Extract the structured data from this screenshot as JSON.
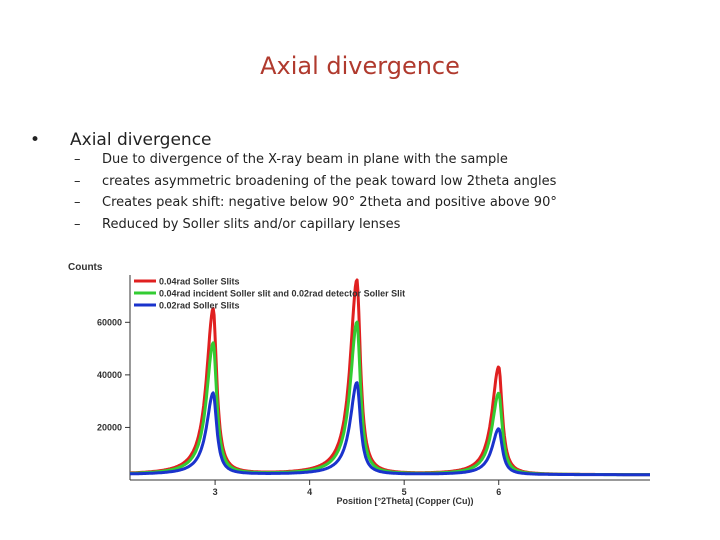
{
  "slide": {
    "title": "Axial divergence",
    "bullet": {
      "marker": "•",
      "text": "Axial divergence"
    },
    "sub_bullets": [
      {
        "marker": "–",
        "text": "Due to divergence of the X-ray beam in plane with the sample"
      },
      {
        "marker": "–",
        "text": "creates asymmetric broadening of the peak toward low 2theta angles"
      },
      {
        "marker": "–",
        "text": "Creates peak shift: negative below 90° 2theta and positive above 90°"
      },
      {
        "marker": "–",
        "text": "Reduced by Soller slits and/or capillary lenses"
      }
    ]
  },
  "chart_data": {
    "type": "line",
    "ylabel": "Counts",
    "xlabel": "Position [°2Theta] (Copper (Cu))",
    "xlim": [
      2.1,
      7.6
    ],
    "ylim": [
      0,
      78000
    ],
    "x_ticks": [
      3,
      4,
      5,
      6
    ],
    "y_ticks": [
      20000,
      40000,
      60000
    ],
    "grid": false,
    "legend_position": "top-left",
    "baseline": 2000,
    "series": [
      {
        "name": "0.04rad Soller Slits",
        "color": "#e02020",
        "peaks": [
          {
            "x": 2.98,
            "y": 65000
          },
          {
            "x": 4.5,
            "y": 76000
          },
          {
            "x": 6.0,
            "y": 43000
          }
        ]
      },
      {
        "name": "0.04rad incident Soller slit and 0.02rad detector Soller Slit",
        "color": "#33cc33",
        "peaks": [
          {
            "x": 2.98,
            "y": 52000
          },
          {
            "x": 4.5,
            "y": 60000
          },
          {
            "x": 6.0,
            "y": 33000
          }
        ]
      },
      {
        "name": "0.02rad Soller Slits",
        "color": "#1a33cc",
        "peaks": [
          {
            "x": 2.98,
            "y": 33000
          },
          {
            "x": 4.5,
            "y": 37000
          },
          {
            "x": 6.0,
            "y": 19500
          }
        ]
      }
    ]
  }
}
